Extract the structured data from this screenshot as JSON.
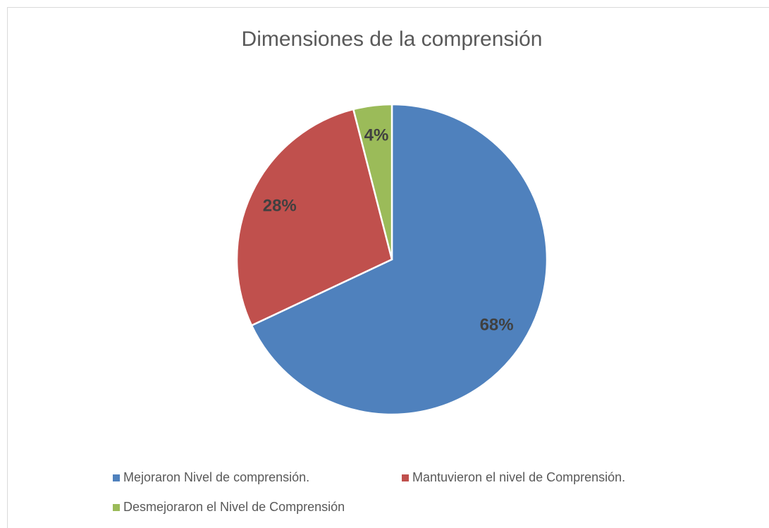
{
  "chart_data": {
    "type": "pie",
    "title": "Dimensiones de la comprensión",
    "categories": [
      "Mejoraron Nivel de comprensión.",
      "Mantuvieron el nivel de Comprensión.",
      "Desmejoraron el Nivel de Comprensión"
    ],
    "values": [
      68,
      28,
      4
    ],
    "value_labels": [
      "68%",
      "28%",
      "4%"
    ],
    "colors": [
      "#4f81bd",
      "#c0504d",
      "#9bbb59"
    ],
    "legend": "bottom"
  }
}
